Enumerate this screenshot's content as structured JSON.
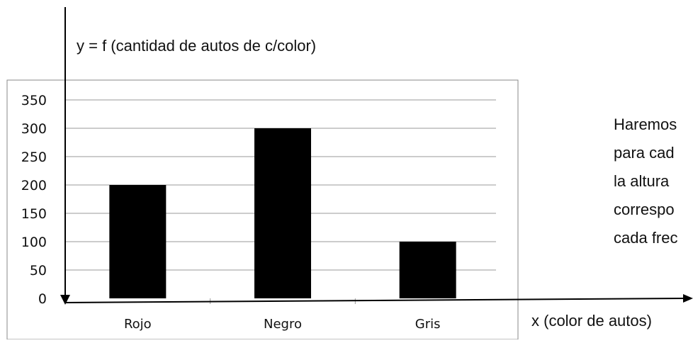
{
  "chart_data": {
    "type": "bar",
    "categories": [
      "Rojo",
      "Negro",
      "Gris"
    ],
    "values": [
      200,
      300,
      100
    ],
    "yticks": [
      0,
      50,
      100,
      150,
      200,
      250,
      300,
      350
    ],
    "ylim": [
      0,
      350
    ],
    "ylabel": "y = f (cantidad de autos de c/color)",
    "xlabel": "x (color de autos)",
    "grid": true,
    "bar_color": "#000000"
  },
  "note": {
    "lines": [
      "Haremos",
      "para cad",
      "la altura",
      "correspo",
      "cada frec"
    ]
  }
}
